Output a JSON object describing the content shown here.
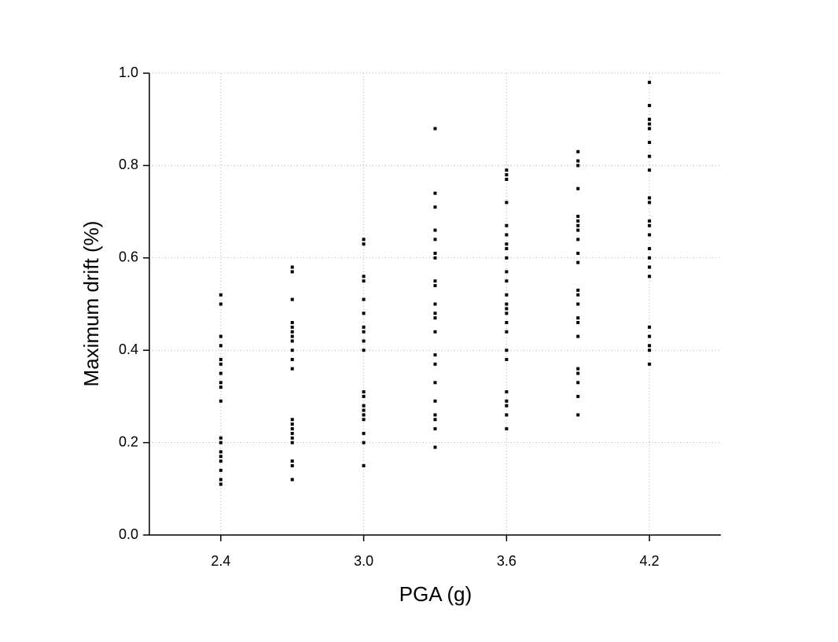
{
  "chart_data": {
    "type": "scatter",
    "x_label": "PGA (g)",
    "y_label": "Maximum drift (%)",
    "color": "#000000",
    "grid": true,
    "xlim": [
      2.1,
      4.5
    ],
    "ylim": [
      0,
      1
    ],
    "xticks": [
      2.4,
      {
        "value": 3,
        "label": "3.0"
      },
      3.6,
      4.2
    ],
    "yticks": [
      {
        "value": 0,
        "label": "0.0"
      },
      0.2,
      0.4,
      0.6,
      0.8,
      {
        "value": 1,
        "label": "1.0"
      }
    ],
    "x": [
      2.4,
      2.4,
      2.4,
      2.4,
      2.4,
      2.4,
      2.4,
      2.4,
      2.4,
      2.4,
      2.4,
      2.4,
      2.4,
      2.4,
      2.4,
      2.4,
      2.4,
      2.4,
      2.7,
      2.7,
      2.7,
      2.7,
      2.7,
      2.7,
      2.7,
      2.7,
      2.7,
      2.7,
      2.7,
      2.7,
      2.7,
      2.7,
      2.7,
      2.7,
      2.7,
      2.7,
      2.7,
      2.7,
      3.0,
      3.0,
      3.0,
      3.0,
      3.0,
      3.0,
      3.0,
      3.0,
      3.0,
      3.0,
      3.0,
      3.0,
      3.0,
      3.0,
      3.0,
      3.0,
      3.0,
      3.0,
      3.0,
      3.3,
      3.3,
      3.3,
      3.3,
      3.3,
      3.3,
      3.3,
      3.3,
      3.3,
      3.3,
      3.3,
      3.3,
      3.3,
      3.3,
      3.3,
      3.3,
      3.3,
      3.3,
      3.3,
      3.3,
      3.3,
      3.6,
      3.6,
      3.6,
      3.6,
      3.6,
      3.6,
      3.6,
      3.6,
      3.6,
      3.6,
      3.6,
      3.6,
      3.6,
      3.6,
      3.6,
      3.6,
      3.6,
      3.6,
      3.6,
      3.6,
      3.6,
      3.6,
      3.6,
      3.6,
      3.9,
      3.9,
      3.9,
      3.9,
      3.9,
      3.9,
      3.9,
      3.9,
      3.9,
      3.9,
      3.9,
      3.9,
      3.9,
      3.9,
      3.9,
      3.9,
      3.9,
      3.9,
      3.9,
      3.9,
      3.9,
      3.9,
      4.2,
      4.2,
      4.2,
      4.2,
      4.2,
      4.2,
      4.2,
      4.2,
      4.2,
      4.2,
      4.2,
      4.2,
      4.2,
      4.2,
      4.2,
      4.2,
      4.2,
      4.2,
      4.2,
      4.2,
      4.2,
      4.2
    ],
    "values": [
      0.52,
      0.5,
      0.43,
      0.41,
      0.38,
      0.37,
      0.35,
      0.33,
      0.32,
      0.29,
      0.21,
      0.2,
      0.18,
      0.17,
      0.16,
      0.14,
      0.12,
      0.11,
      0.58,
      0.57,
      0.51,
      0.46,
      0.45,
      0.44,
      0.43,
      0.42,
      0.4,
      0.38,
      0.36,
      0.25,
      0.24,
      0.23,
      0.22,
      0.21,
      0.2,
      0.16,
      0.15,
      0.12,
      0.64,
      0.63,
      0.56,
      0.55,
      0.51,
      0.48,
      0.45,
      0.44,
      0.42,
      0.4,
      0.31,
      0.3,
      0.28,
      0.27,
      0.26,
      0.25,
      0.22,
      0.2,
      0.15,
      0.88,
      0.74,
      0.71,
      0.66,
      0.64,
      0.61,
      0.6,
      0.55,
      0.54,
      0.5,
      0.48,
      0.47,
      0.44,
      0.39,
      0.37,
      0.33,
      0.29,
      0.26,
      0.25,
      0.23,
      0.19,
      0.79,
      0.78,
      0.77,
      0.72,
      0.67,
      0.65,
      0.63,
      0.62,
      0.6,
      0.57,
      0.55,
      0.52,
      0.5,
      0.49,
      0.48,
      0.46,
      0.44,
      0.4,
      0.38,
      0.31,
      0.29,
      0.28,
      0.26,
      0.23,
      0.83,
      0.81,
      0.8,
      0.75,
      0.69,
      0.68,
      0.67,
      0.66,
      0.64,
      0.61,
      0.59,
      0.53,
      0.52,
      0.5,
      0.47,
      0.46,
      0.43,
      0.36,
      0.35,
      0.33,
      0.3,
      0.26,
      0.98,
      0.93,
      0.9,
      0.89,
      0.88,
      0.85,
      0.82,
      0.79,
      0.73,
      0.72,
      0.68,
      0.67,
      0.65,
      0.62,
      0.6,
      0.58,
      0.56,
      0.45,
      0.43,
      0.41,
      0.4,
      0.37
    ]
  }
}
